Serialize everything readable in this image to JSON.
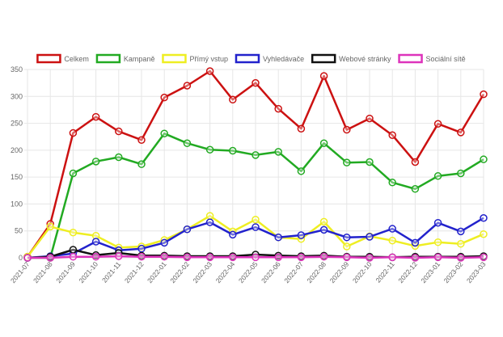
{
  "chart_data": {
    "type": "line",
    "x": [
      "2021-07",
      "2021-08",
      "2021-09",
      "2021-10",
      "2021-11",
      "2021-12",
      "2022-01",
      "2022-02",
      "2022-03",
      "2022-04",
      "2022-05",
      "2022-06",
      "2022-07",
      "2022-08",
      "2022-09",
      "2022-10",
      "2022-11",
      "2022-12",
      "2023-01",
      "2023-02",
      "2023-03"
    ],
    "ylim": [
      0,
      350
    ],
    "yticks": [
      0,
      50,
      100,
      150,
      200,
      250,
      300,
      350
    ],
    "grid": true,
    "legend_position": "top",
    "series": [
      {
        "name": "Celkem",
        "color": "#cc1111",
        "values": [
          2,
          63,
          232,
          262,
          235,
          219,
          298,
          320,
          347,
          294,
          325,
          277,
          240,
          338,
          238,
          259,
          228,
          178,
          249,
          233,
          304
        ]
      },
      {
        "name": "Kampaně",
        "color": "#22aa22",
        "values": [
          0,
          0,
          157,
          179,
          187,
          174,
          231,
          213,
          201,
          199,
          191,
          197,
          161,
          213,
          177,
          178,
          140,
          128,
          152,
          157,
          183
        ]
      },
      {
        "name": "Přímý vstup",
        "color": "#eeee22",
        "values": [
          2,
          58,
          47,
          41,
          19,
          21,
          33,
          53,
          78,
          49,
          71,
          38,
          35,
          67,
          21,
          40,
          32,
          22,
          29,
          26,
          44
        ]
      },
      {
        "name": "Vyhledávače",
        "color": "#2222cc",
        "values": [
          0,
          3,
          8,
          30,
          14,
          17,
          28,
          53,
          66,
          43,
          57,
          38,
          42,
          52,
          38,
          39,
          54,
          28,
          65,
          49,
          74
        ]
      },
      {
        "name": "Webové stránky",
        "color": "#111111",
        "values": [
          0,
          2,
          15,
          5,
          9,
          4,
          4,
          3,
          3,
          3,
          6,
          4,
          3,
          4,
          2,
          2,
          1,
          2,
          2,
          2,
          3
        ]
      },
      {
        "name": "Sociální sítě",
        "color": "#dd33bb",
        "values": [
          0,
          0,
          2,
          2,
          3,
          2,
          2,
          1,
          1,
          1,
          1,
          1,
          1,
          2,
          1,
          0,
          1,
          0,
          1,
          0,
          1
        ]
      }
    ]
  }
}
